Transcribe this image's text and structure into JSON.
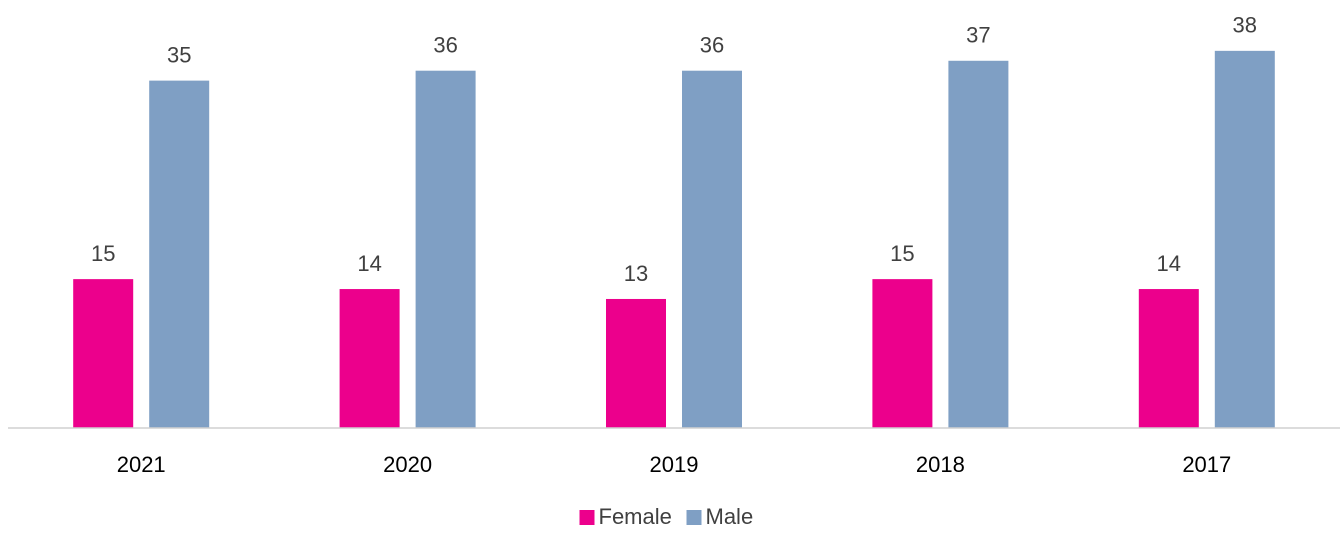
{
  "chart_data": {
    "type": "bar",
    "categories": [
      "2021",
      "2020",
      "2019",
      "2018",
      "2017"
    ],
    "series": [
      {
        "name": "Female",
        "color": "#ec008c",
        "values": [
          15,
          14,
          13,
          15,
          14
        ]
      },
      {
        "name": "Male",
        "color": "#7f9fc4",
        "values": [
          35,
          36,
          36,
          37,
          38
        ]
      }
    ],
    "ylim": [
      0,
      40
    ],
    "legend": "bottom"
  }
}
